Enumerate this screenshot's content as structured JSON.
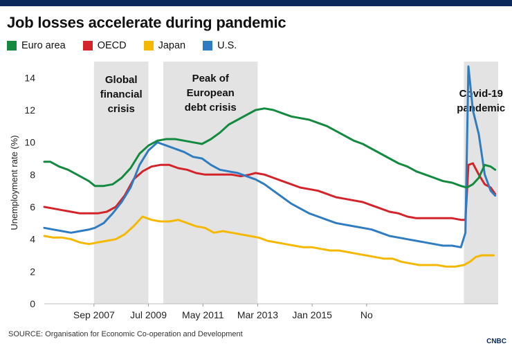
{
  "header": {
    "title": "Job losses accelerate during pandemic"
  },
  "footer": {
    "source": "SOURCE: Organisation for Economic Co-operation and Development",
    "brand": "CNBC"
  },
  "chart_data": {
    "type": "line",
    "title": "Job losses accelerate during pandemic",
    "ylabel": "Unemployment rate (%)",
    "ylim": [
      0,
      15
    ],
    "xlim": [
      2006.0,
      2021.25
    ],
    "yticks": [
      0,
      2,
      4,
      6,
      8,
      10,
      12,
      14
    ],
    "xticks": [
      {
        "label": "Sep 2007",
        "x": 2007.67
      },
      {
        "label": "Jul 2009",
        "x": 2009.5
      },
      {
        "label": "May 2011",
        "x": 2011.33
      },
      {
        "label": "Mar 2013",
        "x": 2013.17
      },
      {
        "label": "Jan 2015",
        "x": 2015.0
      },
      {
        "label": "No",
        "x": 2016.83
      }
    ],
    "grid": false,
    "legend_position": "top-left",
    "shaded_periods": [
      {
        "label": "Global\nfinancial\ncrisis",
        "start": 2007.67,
        "end": 2009.5
      },
      {
        "label": "Peak of\nEuropean\ndebt crisis",
        "start": 2010.0,
        "end": 2013.17
      },
      {
        "label": "Covid-19\npandemic",
        "start": 2020.1,
        "end": 2021.25
      }
    ],
    "series": [
      {
        "name": "Euro area",
        "color": "#138a3f",
        "points": [
          [
            2006.0,
            8.8
          ],
          [
            2006.2,
            8.8
          ],
          [
            2006.5,
            8.5
          ],
          [
            2006.8,
            8.3
          ],
          [
            2007.1,
            8.0
          ],
          [
            2007.5,
            7.6
          ],
          [
            2007.7,
            7.3
          ],
          [
            2008.0,
            7.3
          ],
          [
            2008.3,
            7.4
          ],
          [
            2008.6,
            7.8
          ],
          [
            2008.9,
            8.4
          ],
          [
            2009.2,
            9.3
          ],
          [
            2009.5,
            9.8
          ],
          [
            2009.8,
            10.1
          ],
          [
            2010.1,
            10.2
          ],
          [
            2010.4,
            10.2
          ],
          [
            2010.7,
            10.1
          ],
          [
            2011.0,
            10.0
          ],
          [
            2011.3,
            9.9
          ],
          [
            2011.6,
            10.2
          ],
          [
            2011.9,
            10.6
          ],
          [
            2012.2,
            11.1
          ],
          [
            2012.5,
            11.4
          ],
          [
            2012.8,
            11.7
          ],
          [
            2013.1,
            12.0
          ],
          [
            2013.4,
            12.1
          ],
          [
            2013.7,
            12.0
          ],
          [
            2014.0,
            11.8
          ],
          [
            2014.3,
            11.6
          ],
          [
            2014.6,
            11.5
          ],
          [
            2014.9,
            11.4
          ],
          [
            2015.2,
            11.2
          ],
          [
            2015.5,
            11.0
          ],
          [
            2015.8,
            10.7
          ],
          [
            2016.1,
            10.4
          ],
          [
            2016.4,
            10.1
          ],
          [
            2016.7,
            9.9
          ],
          [
            2017.0,
            9.6
          ],
          [
            2017.3,
            9.3
          ],
          [
            2017.6,
            9.0
          ],
          [
            2017.9,
            8.7
          ],
          [
            2018.2,
            8.5
          ],
          [
            2018.5,
            8.2
          ],
          [
            2018.8,
            8.0
          ],
          [
            2019.1,
            7.8
          ],
          [
            2019.4,
            7.6
          ],
          [
            2019.7,
            7.5
          ],
          [
            2020.0,
            7.3
          ],
          [
            2020.2,
            7.2
          ],
          [
            2020.4,
            7.4
          ],
          [
            2020.6,
            7.8
          ],
          [
            2020.8,
            8.6
          ],
          [
            2021.0,
            8.5
          ],
          [
            2021.15,
            8.3
          ]
        ]
      },
      {
        "name": "OECD",
        "color": "#d3242b",
        "points": [
          [
            2006.0,
            6.0
          ],
          [
            2006.3,
            5.9
          ],
          [
            2006.6,
            5.8
          ],
          [
            2006.9,
            5.7
          ],
          [
            2007.2,
            5.6
          ],
          [
            2007.5,
            5.6
          ],
          [
            2007.8,
            5.6
          ],
          [
            2008.1,
            5.7
          ],
          [
            2008.4,
            6.0
          ],
          [
            2008.7,
            6.7
          ],
          [
            2009.0,
            7.7
          ],
          [
            2009.3,
            8.2
          ],
          [
            2009.6,
            8.5
          ],
          [
            2009.9,
            8.6
          ],
          [
            2010.2,
            8.6
          ],
          [
            2010.5,
            8.4
          ],
          [
            2010.8,
            8.3
          ],
          [
            2011.1,
            8.1
          ],
          [
            2011.4,
            8.0
          ],
          [
            2011.7,
            8.0
          ],
          [
            2012.0,
            8.0
          ],
          [
            2012.3,
            8.0
          ],
          [
            2012.6,
            7.9
          ],
          [
            2012.9,
            8.0
          ],
          [
            2013.1,
            8.1
          ],
          [
            2013.4,
            8.0
          ],
          [
            2013.7,
            7.8
          ],
          [
            2014.0,
            7.6
          ],
          [
            2014.3,
            7.4
          ],
          [
            2014.6,
            7.2
          ],
          [
            2014.9,
            7.1
          ],
          [
            2015.2,
            7.0
          ],
          [
            2015.5,
            6.8
          ],
          [
            2015.8,
            6.6
          ],
          [
            2016.1,
            6.5
          ],
          [
            2016.4,
            6.4
          ],
          [
            2016.7,
            6.3
          ],
          [
            2017.0,
            6.1
          ],
          [
            2017.3,
            5.9
          ],
          [
            2017.6,
            5.7
          ],
          [
            2017.9,
            5.6
          ],
          [
            2018.2,
            5.4
          ],
          [
            2018.5,
            5.3
          ],
          [
            2018.8,
            5.3
          ],
          [
            2019.1,
            5.3
          ],
          [
            2019.4,
            5.3
          ],
          [
            2019.7,
            5.3
          ],
          [
            2020.0,
            5.2
          ],
          [
            2020.15,
            5.2
          ],
          [
            2020.25,
            8.6
          ],
          [
            2020.4,
            8.7
          ],
          [
            2020.6,
            8.0
          ],
          [
            2020.8,
            7.4
          ],
          [
            2021.0,
            7.2
          ],
          [
            2021.15,
            6.8
          ]
        ]
      },
      {
        "name": "Japan",
        "color": "#f5b800",
        "points": [
          [
            2006.0,
            4.2
          ],
          [
            2006.3,
            4.1
          ],
          [
            2006.6,
            4.1
          ],
          [
            2006.9,
            4.0
          ],
          [
            2007.2,
            3.8
          ],
          [
            2007.5,
            3.7
          ],
          [
            2007.8,
            3.8
          ],
          [
            2008.1,
            3.9
          ],
          [
            2008.4,
            4.0
          ],
          [
            2008.7,
            4.3
          ],
          [
            2009.0,
            4.8
          ],
          [
            2009.3,
            5.4
          ],
          [
            2009.6,
            5.2
          ],
          [
            2009.9,
            5.1
          ],
          [
            2010.2,
            5.1
          ],
          [
            2010.5,
            5.2
          ],
          [
            2010.8,
            5.0
          ],
          [
            2011.1,
            4.8
          ],
          [
            2011.4,
            4.7
          ],
          [
            2011.7,
            4.4
          ],
          [
            2012.0,
            4.5
          ],
          [
            2012.3,
            4.4
          ],
          [
            2012.6,
            4.3
          ],
          [
            2012.9,
            4.2
          ],
          [
            2013.2,
            4.1
          ],
          [
            2013.5,
            3.9
          ],
          [
            2013.8,
            3.8
          ],
          [
            2014.1,
            3.7
          ],
          [
            2014.4,
            3.6
          ],
          [
            2014.7,
            3.5
          ],
          [
            2015.0,
            3.5
          ],
          [
            2015.3,
            3.4
          ],
          [
            2015.6,
            3.3
          ],
          [
            2015.9,
            3.3
          ],
          [
            2016.2,
            3.2
          ],
          [
            2016.5,
            3.1
          ],
          [
            2016.8,
            3.0
          ],
          [
            2017.1,
            2.9
          ],
          [
            2017.4,
            2.8
          ],
          [
            2017.7,
            2.8
          ],
          [
            2018.0,
            2.6
          ],
          [
            2018.3,
            2.5
          ],
          [
            2018.6,
            2.4
          ],
          [
            2018.9,
            2.4
          ],
          [
            2019.2,
            2.4
          ],
          [
            2019.5,
            2.3
          ],
          [
            2019.8,
            2.3
          ],
          [
            2020.1,
            2.4
          ],
          [
            2020.3,
            2.6
          ],
          [
            2020.5,
            2.9
          ],
          [
            2020.7,
            3.0
          ],
          [
            2020.9,
            3.0
          ],
          [
            2021.1,
            3.0
          ]
        ]
      },
      {
        "name": "U.S.",
        "color": "#2f7cc0",
        "points": [
          [
            2006.0,
            4.7
          ],
          [
            2006.3,
            4.6
          ],
          [
            2006.6,
            4.5
          ],
          [
            2006.9,
            4.4
          ],
          [
            2007.2,
            4.5
          ],
          [
            2007.5,
            4.6
          ],
          [
            2007.7,
            4.7
          ],
          [
            2008.0,
            5.0
          ],
          [
            2008.3,
            5.6
          ],
          [
            2008.6,
            6.3
          ],
          [
            2008.9,
            7.2
          ],
          [
            2009.2,
            8.6
          ],
          [
            2009.5,
            9.5
          ],
          [
            2009.8,
            10.0
          ],
          [
            2010.1,
            9.8
          ],
          [
            2010.4,
            9.6
          ],
          [
            2010.7,
            9.4
          ],
          [
            2011.0,
            9.1
          ],
          [
            2011.3,
            9.0
          ],
          [
            2011.6,
            8.6
          ],
          [
            2011.9,
            8.3
          ],
          [
            2012.2,
            8.2
          ],
          [
            2012.5,
            8.1
          ],
          [
            2012.8,
            7.9
          ],
          [
            2013.1,
            7.7
          ],
          [
            2013.4,
            7.4
          ],
          [
            2013.7,
            7.0
          ],
          [
            2014.0,
            6.6
          ],
          [
            2014.3,
            6.2
          ],
          [
            2014.6,
            5.9
          ],
          [
            2014.9,
            5.6
          ],
          [
            2015.2,
            5.4
          ],
          [
            2015.5,
            5.2
          ],
          [
            2015.8,
            5.0
          ],
          [
            2016.1,
            4.9
          ],
          [
            2016.4,
            4.8
          ],
          [
            2016.7,
            4.7
          ],
          [
            2017.0,
            4.6
          ],
          [
            2017.3,
            4.4
          ],
          [
            2017.6,
            4.2
          ],
          [
            2017.9,
            4.1
          ],
          [
            2018.2,
            4.0
          ],
          [
            2018.5,
            3.9
          ],
          [
            2018.8,
            3.8
          ],
          [
            2019.1,
            3.7
          ],
          [
            2019.4,
            3.6
          ],
          [
            2019.7,
            3.6
          ],
          [
            2020.0,
            3.5
          ],
          [
            2020.15,
            4.4
          ],
          [
            2020.25,
            14.7
          ],
          [
            2020.4,
            12.0
          ],
          [
            2020.6,
            10.5
          ],
          [
            2020.8,
            8.0
          ],
          [
            2021.0,
            7.0
          ],
          [
            2021.15,
            6.7
          ]
        ]
      }
    ]
  }
}
